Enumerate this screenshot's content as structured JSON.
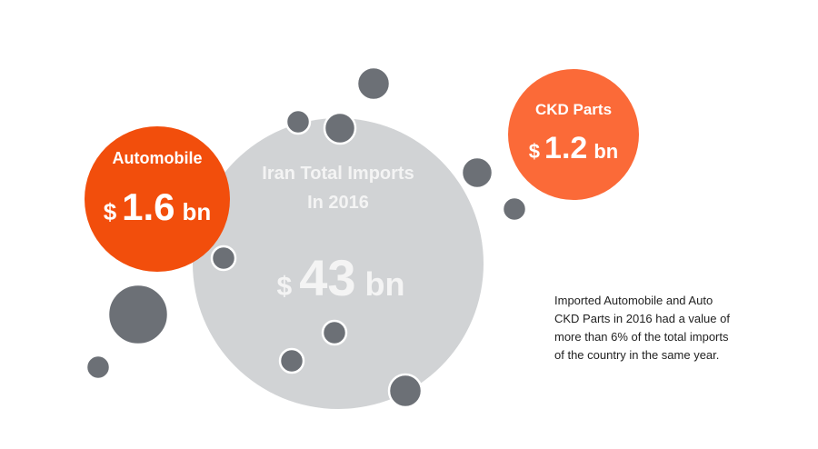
{
  "center": {
    "title_lines": [
      "Iran Total Imports",
      "In 2016"
    ],
    "currency": "$",
    "amount": 43,
    "unit": "bn"
  },
  "automobile": {
    "label": "Automobile",
    "currency": "$",
    "amount": 1.6,
    "unit": "bn"
  },
  "ckd_parts": {
    "label": "CKD Parts",
    "currency": "$",
    "amount": 1.2,
    "unit": "bn"
  },
  "note": {
    "lines": [
      "Imported Automobile and Auto",
      "CKD Parts in 2016 had a value of",
      "more than 6% of the total imports",
      "of the country in the same year."
    ]
  }
}
